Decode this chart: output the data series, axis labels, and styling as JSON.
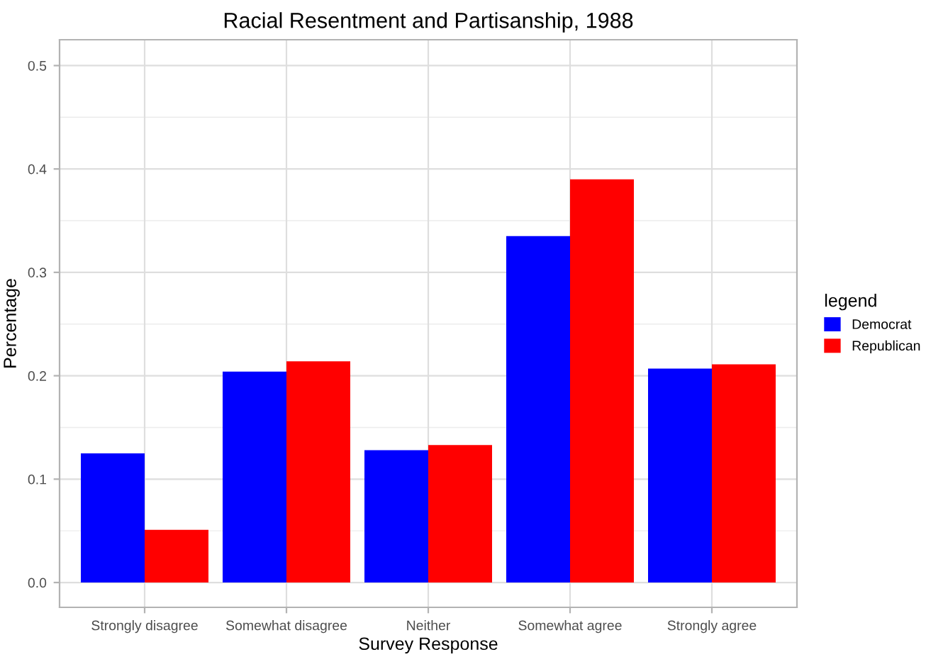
{
  "chart_data": {
    "type": "bar",
    "title": "Racial Resentment and Partisanship, 1988",
    "xlabel": "Survey Response",
    "ylabel": "Percentage",
    "legend_title": "legend",
    "categories": [
      "Strongly disagree",
      "Somewhat disagree",
      "Neither",
      "Somewhat agree",
      "Strongly agree"
    ],
    "series": [
      {
        "name": "Democrat",
        "color": "#0000ff",
        "values": [
          0.125,
          0.204,
          0.128,
          0.335,
          0.207
        ]
      },
      {
        "name": "Republican",
        "color": "#ff0000",
        "values": [
          0.051,
          0.214,
          0.133,
          0.39,
          0.211
        ]
      }
    ],
    "ylim": [
      -0.024,
      0.525
    ],
    "yticks": [
      {
        "value": 0,
        "label": "0.0"
      },
      {
        "value": 0.1,
        "label": "0.1"
      },
      {
        "value": 0.2,
        "label": "0.2"
      },
      {
        "value": 0.3,
        "label": "0.3"
      },
      {
        "value": 0.4,
        "label": "0.4"
      },
      {
        "value": 0.5,
        "label": "0.5"
      }
    ],
    "grid": true,
    "legend": "right"
  }
}
